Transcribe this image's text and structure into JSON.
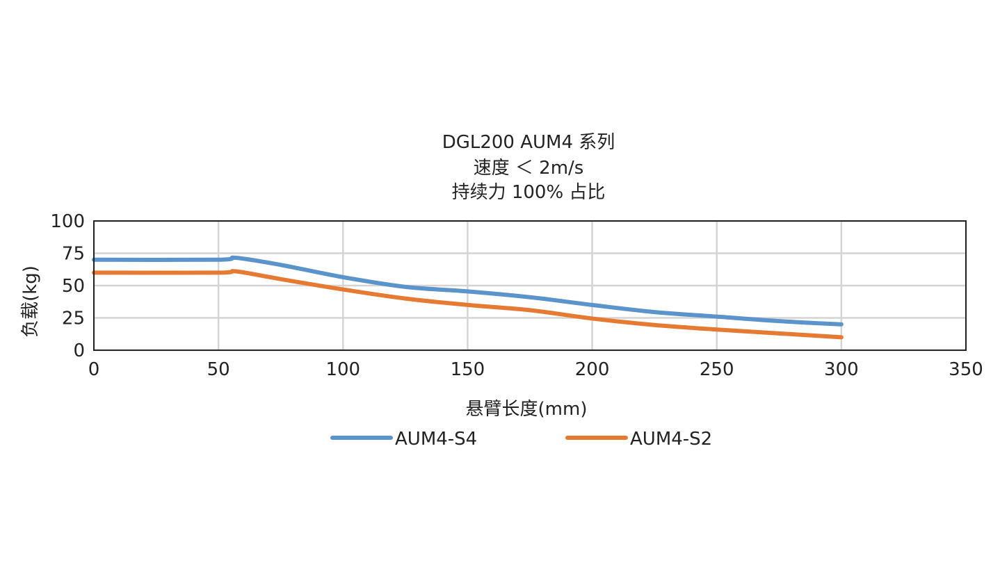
{
  "chart_data": {
    "type": "line",
    "title": [
      "DGL200 AUM4 系列",
      "速度 ＜ 2m/s",
      "持续力 100% 占比"
    ],
    "xlabel": "悬臂长度(mm)",
    "ylabel": "负载(kg)",
    "xlim": [
      0,
      350
    ],
    "ylim": [
      0,
      100
    ],
    "xticks": [
      0,
      50,
      100,
      150,
      200,
      250,
      300,
      350
    ],
    "yticks": [
      0,
      25,
      50,
      75,
      100
    ],
    "grid": true,
    "legend_position": "bottom",
    "series": [
      {
        "name": "AUM4-S4",
        "color": "#5b93cb",
        "x": [
          0,
          50,
          57,
          75,
          100,
          125,
          150,
          175,
          200,
          225,
          250,
          275,
          300
        ],
        "y": [
          70,
          70,
          71.5,
          66,
          56.5,
          49,
          45.5,
          41,
          35,
          29.5,
          26,
          22.5,
          20
        ]
      },
      {
        "name": "AUM4-S2",
        "color": "#e67a32",
        "x": [
          0,
          50,
          57,
          75,
          100,
          125,
          150,
          175,
          200,
          225,
          250,
          275,
          300
        ],
        "y": [
          60,
          60,
          61,
          55,
          47,
          40,
          35,
          31,
          24.5,
          19.5,
          16,
          13,
          10
        ]
      }
    ]
  }
}
